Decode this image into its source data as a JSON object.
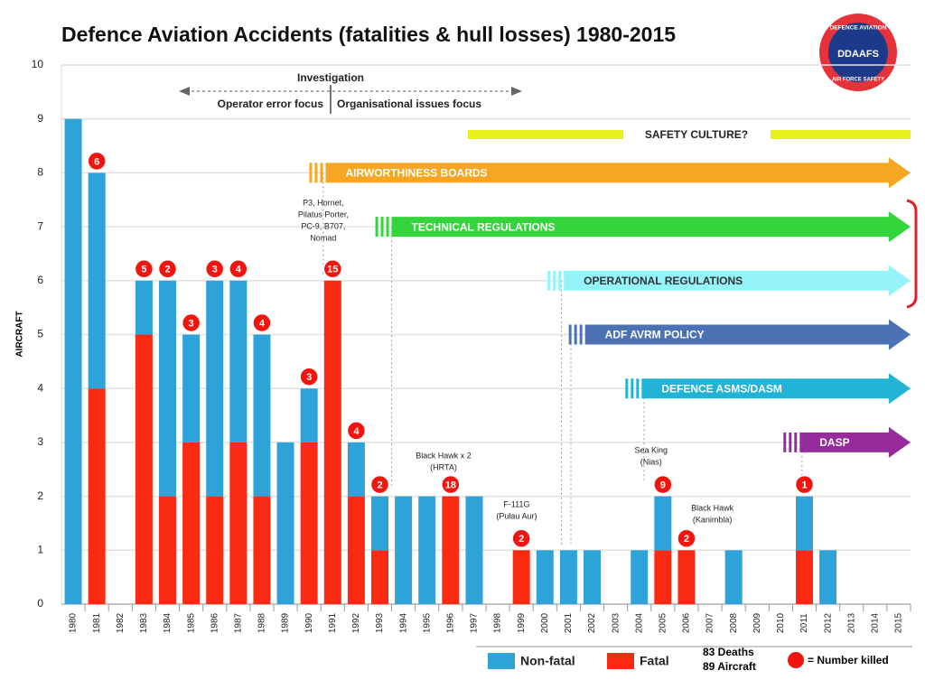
{
  "chart_data": {
    "type": "bar",
    "title": "Defence Aviation Accidents (fatalities & hull losses) 1980-2015",
    "y_label": "AIRCRAFT",
    "categories": [
      "1980",
      "1981",
      "1982",
      "1983",
      "1984",
      "1985",
      "1986",
      "1987",
      "1988",
      "1989",
      "1990",
      "1991",
      "1992",
      "1993",
      "1994",
      "1995",
      "1996",
      "1997",
      "1998",
      "1999",
      "2000",
      "2001",
      "2002",
      "2003",
      "2004",
      "2005",
      "2006",
      "2007",
      "2008",
      "2009",
      "2010",
      "2011",
      "2012",
      "2013",
      "2014",
      "2015"
    ],
    "series": [
      {
        "name": "Non-fatal",
        "color": "#2ea3da",
        "values": [
          9,
          4,
          0,
          1,
          4,
          2,
          4,
          3,
          3,
          3,
          1,
          0,
          1,
          1,
          2,
          2,
          0,
          2,
          0,
          0,
          1,
          1,
          1,
          0,
          1,
          1,
          0,
          0,
          1,
          0,
          0,
          1,
          1,
          0,
          0,
          0
        ]
      },
      {
        "name": "Fatal",
        "color": "#fb2a12",
        "values": [
          0,
          4,
          0,
          5,
          2,
          3,
          2,
          3,
          2,
          0,
          3,
          6,
          2,
          1,
          0,
          0,
          2,
          0,
          0,
          1,
          0,
          0,
          0,
          0,
          0,
          1,
          1,
          0,
          0,
          0,
          0,
          1,
          0,
          0,
          0,
          0
        ]
      }
    ],
    "deaths": [
      null,
      6,
      null,
      5,
      2,
      3,
      3,
      4,
      4,
      null,
      3,
      15,
      4,
      2,
      null,
      null,
      18,
      null,
      null,
      2,
      null,
      null,
      null,
      null,
      null,
      9,
      2,
      null,
      null,
      null,
      null,
      1,
      null,
      null,
      null,
      null
    ],
    "deaths_color": "#f0150f",
    "ylim": [
      0,
      10
    ],
    "yticks": [
      0,
      1,
      2,
      3,
      4,
      5,
      6,
      7,
      8,
      9,
      10
    ],
    "grid": true,
    "investigation": {
      "title": "Investigation",
      "left": "Operator error focus",
      "right": "Organisational issues focus"
    },
    "safety_culture": "SAFETY CULTURE?",
    "programs": [
      {
        "label": "AIRWORTHINESS BOARDS",
        "color": "#f6a623"
      },
      {
        "label": "TECHNICAL REGULATIONS",
        "color": "#34d43c"
      },
      {
        "label": "OPERATIONAL REGULATIONS",
        "color": "#95f3fa"
      },
      {
        "label": "ADF AVRM POLICY",
        "color": "#4c71b4"
      },
      {
        "label": "DEFENCE ASMS/DASM",
        "color": "#20b3d6"
      },
      {
        "label": "DASP",
        "color": "#982b9c"
      }
    ],
    "events": [
      [
        "P3, Hornet,",
        "Pilatus Porter,",
        "PC-9, B707,",
        "Nomad"
      ],
      [
        "Black Hawk x 2",
        "(HRTA)"
      ],
      [
        "F-111G",
        "(Pulau Aur)"
      ],
      [
        "Sea King",
        "(Nias)"
      ],
      [
        "Black Hawk",
        "(Kanimbla)"
      ]
    ],
    "totals": [
      "83 Deaths",
      "89 Aircraft"
    ],
    "legend_note": "= Number killed",
    "logo": {
      "top": "DEFENCE AVIATION",
      "name": "DDAAFS",
      "bottom": "AIR FORCE SAFETY"
    }
  }
}
